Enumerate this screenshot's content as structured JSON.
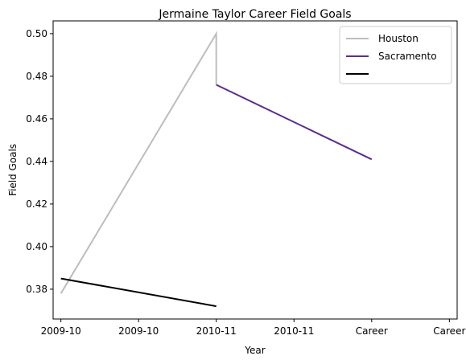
{
  "chart_data": {
    "type": "line",
    "title": "Jermaine Taylor  Career Field Goals",
    "xlabel": "Year",
    "ylabel": "Field Goals",
    "categories": [
      "2009-10",
      "2009-10",
      "2010-11",
      "2010-11",
      "Career",
      "Career"
    ],
    "x_positions": [
      0,
      1,
      2,
      3,
      4,
      5
    ],
    "xlim": [
      -0.1,
      5.1
    ],
    "ylim": [
      0.366,
      0.506
    ],
    "yticks": [
      0.38,
      0.4,
      0.42,
      0.44,
      0.46,
      0.48,
      0.5
    ],
    "ytick_labels": [
      "0.38",
      "0.40",
      "0.42",
      "0.44",
      "0.46",
      "0.48",
      "0.50"
    ],
    "series": [
      {
        "name": "Houston",
        "color": "#bdbdbd",
        "points": [
          [
            0,
            0.378
          ],
          [
            2,
            0.5
          ],
          [
            2,
            0.476
          ]
        ]
      },
      {
        "name": "Sacramento",
        "color": "#5b2d8e",
        "points": [
          [
            2,
            0.476
          ],
          [
            4,
            0.441
          ]
        ]
      },
      {
        "name": "",
        "color": "#000000",
        "points": [
          [
            0,
            0.385
          ],
          [
            2,
            0.372
          ]
        ]
      }
    ],
    "legend_position": "top-right",
    "grid": false
  }
}
